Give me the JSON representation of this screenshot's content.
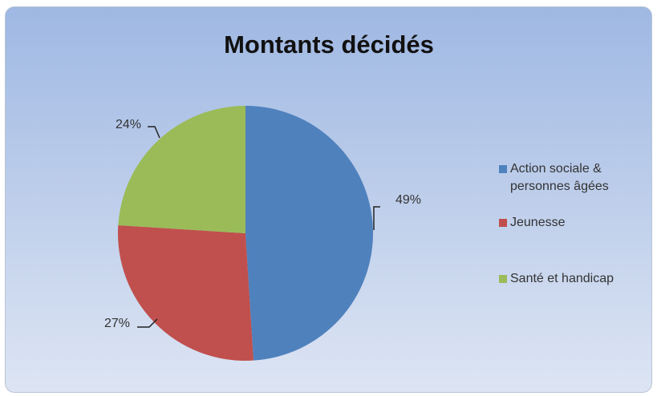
{
  "chart_data": {
    "type": "pie",
    "title": "Montants décidés",
    "categories": [
      "Action sociale & personnes âgées",
      "Jeunesse",
      "Santé et handicap"
    ],
    "values": [
      49,
      27,
      24
    ],
    "value_labels": [
      "49%",
      "27%",
      "24%"
    ],
    "colors": [
      "#4f81bd",
      "#c0504d",
      "#9bbb59"
    ],
    "legend": "right"
  }
}
